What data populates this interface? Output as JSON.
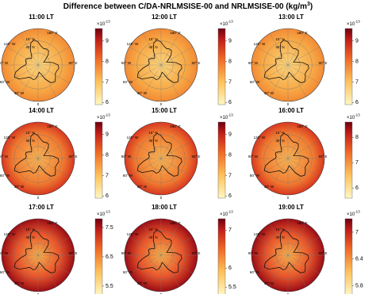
{
  "title": {
    "text": "Difference between C/DA-NRLMSISE-00 and NRLMSISE-00 (kg/m",
    "sup": "3",
    "end": ")"
  },
  "colorbar_exponent": {
    "base": "×10",
    "power": "-13"
  },
  "map_labels": [
    "180° E",
    "45° N",
    "15° N",
    "120° W",
    "90° W",
    "60° W",
    "30° W",
    "0",
    "90° E"
  ],
  "panels": [
    {
      "title": "11:00 LT",
      "clim": [
        5.9,
        9.6
      ],
      "cticks": [
        9,
        8,
        7,
        6
      ]
    },
    {
      "title": "12:00 LT",
      "clim": [
        5.9,
        9.6
      ],
      "cticks": [
        9,
        8,
        7,
        6
      ]
    },
    {
      "title": "13:00 LT",
      "clim": [
        5.9,
        9.6
      ],
      "cticks": [
        9,
        8,
        7,
        6
      ]
    },
    {
      "title": "14:00 LT",
      "clim": [
        5.9,
        9.6
      ],
      "cticks": [
        9,
        8,
        7,
        6
      ]
    },
    {
      "title": "15:00 LT",
      "clim": [
        5.9,
        9.6
      ],
      "cticks": [
        9,
        8,
        7,
        6
      ]
    },
    {
      "title": "16:00 LT",
      "clim": [
        5.6,
        8.6
      ],
      "cticks": [
        8,
        7,
        6
      ]
    },
    {
      "title": "17:00 LT",
      "clim": [
        5.2,
        7.8
      ],
      "cticks": [
        7.5,
        6.5,
        5.5
      ]
    },
    {
      "title": "18:00 LT",
      "clim": [
        5.3,
        7.3
      ],
      "cticks": [
        7,
        6,
        5.5
      ]
    },
    {
      "title": "19:00 LT",
      "clim": [
        5.6,
        7.3
      ],
      "cticks": [
        7,
        6.4,
        5.8
      ]
    }
  ]
}
